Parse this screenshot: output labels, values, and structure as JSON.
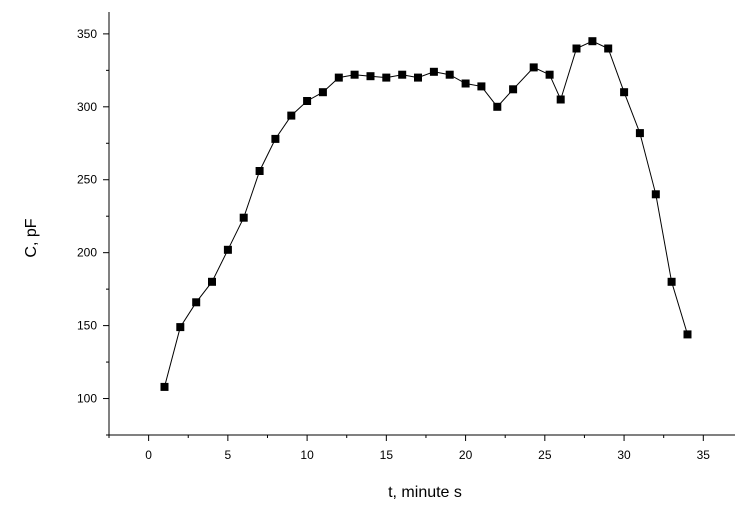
{
  "chart_data": {
    "type": "line",
    "title": "",
    "xlabel": "t, minute s",
    "ylabel": "C, pF",
    "xlim": [
      -2.5,
      37
    ],
    "ylim": [
      75,
      365
    ],
    "x_ticks": [
      0,
      5,
      10,
      15,
      20,
      25,
      30,
      35
    ],
    "y_ticks": [
      100,
      150,
      200,
      250,
      300,
      350
    ],
    "grid": false,
    "legend": "none",
    "marker": "square",
    "line_color": "#000000",
    "series": [
      {
        "x": [
          1,
          2,
          3,
          4,
          5,
          6,
          7,
          8,
          9,
          10,
          11,
          12,
          13,
          14,
          15,
          16,
          17,
          18,
          19,
          20,
          21,
          22,
          23,
          24.3,
          25.3,
          26,
          27,
          28,
          29,
          30,
          31,
          32,
          33,
          34
        ],
        "values": [
          108,
          149,
          166,
          180,
          202,
          224,
          256,
          278,
          294,
          304,
          310,
          320,
          322,
          321,
          320,
          322,
          320,
          324,
          322,
          316,
          314,
          300,
          312,
          327,
          322,
          305,
          340,
          345,
          340,
          310,
          282,
          240,
          180,
          144
        ]
      }
    ]
  }
}
